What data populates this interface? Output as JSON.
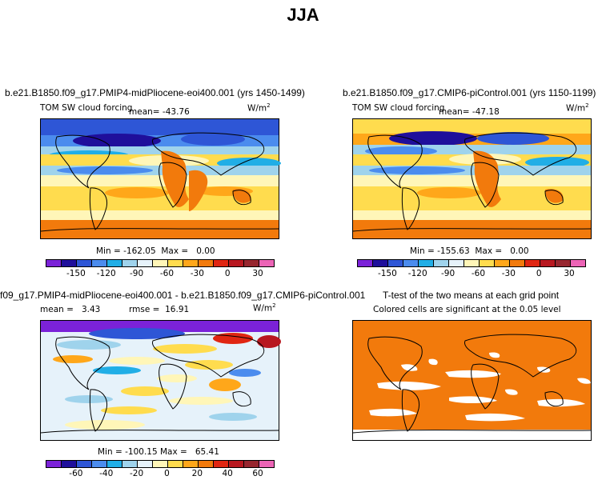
{
  "figure": {
    "title": "JJA"
  },
  "panels": [
    {
      "id": "top-left",
      "title": "b.e21.B1850.f09_g17.PMIP4-midPliocene-eoi400.001 (yrs 1450-1499)",
      "left_label": "TOM SW cloud forcing",
      "mean_label": "mean=",
      "mean_value": "-43.76",
      "units": "W/m",
      "units_sup": "2",
      "min_label": "Min =",
      "min_value": "-162.05",
      "max_label": "Max =",
      "max_value": "0.00",
      "colorbar": {
        "colors": [
          "#7b22d8",
          "#1f0f9b",
          "#2e56d6",
          "#4b8cee",
          "#21aee6",
          "#9fd3ec",
          "#e6f2fa",
          "#fff6b8",
          "#ffdc4e",
          "#ffa71a",
          "#f27a0c",
          "#e02612",
          "#b81820",
          "#97262f",
          "#ec64b6"
        ],
        "ticks": [
          "-150",
          "-120",
          "-90",
          "-60",
          "-30",
          "0",
          "30"
        ]
      }
    },
    {
      "id": "top-right",
      "title": "b.e21.B1850.f09_g17.CMIP6-piControl.001 (yrs 1150-1199)",
      "left_label": "TOM SW cloud forcing",
      "mean_label": "mean=",
      "mean_value": "-47.18",
      "units": "W/m",
      "units_sup": "2",
      "min_label": "Min =",
      "min_value": "-155.63",
      "max_label": "Max =",
      "max_value": "0.00",
      "colorbar": {
        "colors": [
          "#7b22d8",
          "#1f0f9b",
          "#2e56d6",
          "#4b8cee",
          "#21aee6",
          "#9fd3ec",
          "#e6f2fa",
          "#fff6b8",
          "#ffdc4e",
          "#ffa71a",
          "#f27a0c",
          "#e02612",
          "#b81820",
          "#97262f",
          "#ec64b6"
        ],
        "ticks": [
          "-150",
          "-120",
          "-90",
          "-60",
          "-30",
          "0",
          "30"
        ]
      }
    },
    {
      "id": "bottom-left",
      "title": "f09_g17.PMIP4-midPliocene-eoi400.001 - b.e21.B1850.f09_g17.CMIP6-piControl.001",
      "mean_label": "mean =",
      "mean_value": "3.43",
      "rmse_label": "rmse =",
      "rmse_value": "16.91",
      "units": "W/m",
      "units_sup": "2",
      "min_label": "Min =",
      "min_value": "-100.15",
      "max_label": "Max =",
      "max_value": "65.41",
      "colorbar": {
        "colors": [
          "#7b22d8",
          "#1f0f9b",
          "#2e56d6",
          "#4b8cee",
          "#21aee6",
          "#9fd3ec",
          "#e6f2fa",
          "#fff6b8",
          "#ffdc4e",
          "#ffa71a",
          "#f27a0c",
          "#e02612",
          "#b81820",
          "#97262f",
          "#ec64b6"
        ],
        "ticks": [
          "-60",
          "-40",
          "-20",
          "0",
          "20",
          "40",
          "60"
        ]
      }
    },
    {
      "id": "bottom-right",
      "title": "T-test of the two means at each grid point",
      "subtitle": "Colored cells are significant at the 0.05 level"
    }
  ],
  "chart_data": [
    {
      "type": "heatmap",
      "title": "b.e21.B1850.f09_g17.PMIP4-midPliocene-eoi400.001 (yrs 1450-1499)",
      "variable": "TOM SW cloud forcing",
      "units": "W/m2",
      "season": "JJA",
      "mean": -43.76,
      "min": -162.05,
      "max": 0.0,
      "levels": [
        -150,
        -120,
        -90,
        -60,
        -30,
        0,
        30
      ]
    },
    {
      "type": "heatmap",
      "title": "b.e21.B1850.f09_g17.CMIP6-piControl.001 (yrs 1150-1199)",
      "variable": "TOM SW cloud forcing",
      "units": "W/m2",
      "season": "JJA",
      "mean": -47.18,
      "min": -155.63,
      "max": 0.0,
      "levels": [
        -150,
        -120,
        -90,
        -60,
        -30,
        0,
        30
      ]
    },
    {
      "type": "heatmap",
      "title": "f09_g17.PMIP4-midPliocene-eoi400.001 - b.e21.B1850.f09_g17.CMIP6-piControl.001",
      "units": "W/m2",
      "season": "JJA",
      "mean": 3.43,
      "rmse": 16.91,
      "min": -100.15,
      "max": 65.41,
      "levels": [
        -60,
        -40,
        -20,
        0,
        20,
        40,
        60
      ]
    },
    {
      "type": "heatmap",
      "title": "T-test of the two means at each grid point",
      "subtitle": "Colored cells are significant at the 0.05 level",
      "significance_level": 0.05
    }
  ]
}
